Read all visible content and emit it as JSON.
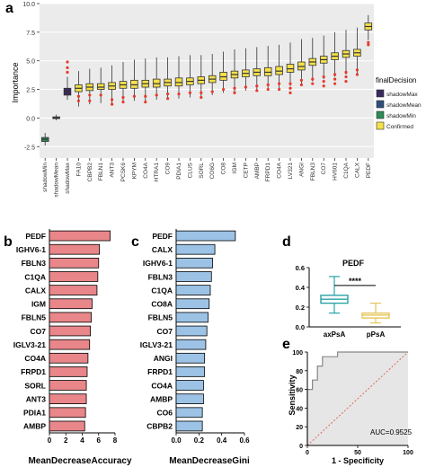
{
  "panel_letters": {
    "a": "a",
    "b": "b",
    "c": "c",
    "d": "d",
    "e": "e"
  },
  "chart_data": [
    {
      "panel": "a",
      "type": "box",
      "ylabel": "Importance",
      "ylim": [
        -3.5,
        10
      ],
      "yticks": [
        -2.5,
        0.0,
        2.5,
        5.0,
        7.5,
        10.0
      ],
      "yticklabels": [
        "-2.5",
        "0.0",
        "2.5",
        "5.0",
        "7.5",
        "10.0"
      ],
      "legend": {
        "title": "finalDecision",
        "placement": "right",
        "entries": [
          {
            "label": "shadowMax",
            "color": "#3b2a5c"
          },
          {
            "label": "shadowMean",
            "color": "#2e4f7a"
          },
          {
            "label": "shadowMin",
            "color": "#2e8b57"
          },
          {
            "label": "Confirmed",
            "color": "#f5e04a"
          }
        ]
      },
      "outlier_color": "#e53b2c",
      "categories": [
        "shadowMin",
        "shadowMean",
        "shadowMax",
        "FA10",
        "CBPB2",
        "FBLN1",
        "ANT3",
        "PCSK6",
        "KPYM",
        "CO4A",
        "HTRA1",
        "CO9",
        "PDIA1",
        "CLUS",
        "SORL",
        "CO6G",
        "CO8",
        "IGM",
        "CETP",
        "AMBP",
        "FRPD1",
        "CO4A",
        "LV321",
        "ANGI",
        "FBLN3",
        "CO7",
        "HV601",
        "C1QA",
        "CALX",
        "PEDF"
      ],
      "series": [
        {
          "name": "shadowMin",
          "values": [
            [
              -2.4,
              -2.05,
              -1.85,
              -1.7,
              -1.3
            ]
          ]
        },
        {
          "name": "shadowMean",
          "values": [
            [
              -0.2,
              -0.05,
              0.0,
              0.1,
              0.3
            ]
          ]
        },
        {
          "name": "shadowMax",
          "values": [
            [
              1.6,
              2.0,
              2.3,
              2.6,
              3.6
            ]
          ]
        },
        {
          "name": "Confirmed",
          "values": [
            [
              1.0,
              2.3,
              2.6,
              2.9,
              4.1
            ],
            [
              1.2,
              2.4,
              2.7,
              3.0,
              4.3
            ],
            [
              1.3,
              2.5,
              2.7,
              3.0,
              4.4
            ],
            [
              1.3,
              2.5,
              2.8,
              3.1,
              4.6
            ],
            [
              1.4,
              2.6,
              2.9,
              3.2,
              4.9
            ],
            [
              1.5,
              2.6,
              2.9,
              3.3,
              5.1
            ],
            [
              1.5,
              2.7,
              3.0,
              3.3,
              5.2
            ],
            [
              1.6,
              2.7,
              3.0,
              3.4,
              5.3
            ],
            [
              1.7,
              2.8,
              3.1,
              3.4,
              5.3
            ],
            [
              1.7,
              2.8,
              3.1,
              3.5,
              5.4
            ],
            [
              1.8,
              2.9,
              3.2,
              3.5,
              5.5
            ],
            [
              1.9,
              3.0,
              3.3,
              3.6,
              5.5
            ],
            [
              2.0,
              3.1,
              3.4,
              3.7,
              5.6
            ],
            [
              2.2,
              3.3,
              3.6,
              4.0,
              5.8
            ],
            [
              2.3,
              3.5,
              3.8,
              4.1,
              6.0
            ],
            [
              2.4,
              3.6,
              3.9,
              4.2,
              6.1
            ],
            [
              2.5,
              3.7,
              4.0,
              4.3,
              6.2
            ],
            [
              2.5,
              3.7,
              4.0,
              4.4,
              6.3
            ],
            [
              2.6,
              3.8,
              4.1,
              4.5,
              6.4
            ],
            [
              2.8,
              4.0,
              4.3,
              4.7,
              6.6
            ],
            [
              3.0,
              4.2,
              4.5,
              4.9,
              6.9
            ],
            [
              3.2,
              4.6,
              4.9,
              5.2,
              7.0
            ],
            [
              3.4,
              4.8,
              5.1,
              5.4,
              7.2
            ],
            [
              3.6,
              5.1,
              5.4,
              5.7,
              7.5
            ],
            [
              3.8,
              5.3,
              5.6,
              5.9,
              7.7
            ],
            [
              3.9,
              5.4,
              5.7,
              6.0,
              7.9
            ],
            [
              6.8,
              7.7,
              8.0,
              8.3,
              9.0
            ]
          ]
        }
      ],
      "outliers": [
        [],
        [],
        [
          4.0,
          4.4,
          4.9
        ],
        [
          1.9,
          1.5
        ],
        [
          2.0,
          1.5
        ],
        [
          2.0
        ],
        [
          1.6,
          1.2
        ],
        [
          1.8,
          1.4
        ],
        [
          1.9
        ],
        [
          1.9,
          1.4
        ],
        [
          2.0
        ],
        [
          2.1,
          1.7
        ],
        [
          2.1
        ],
        [
          2.2
        ],
        [
          2.2,
          1.8
        ],
        [
          2.3
        ],
        [
          2.5
        ],
        [
          2.6,
          2.2
        ],
        [
          2.7
        ],
        [
          2.8,
          2.4
        ],
        [
          2.9,
          2.5
        ],
        [
          3.0,
          2.5
        ],
        [
          3.0,
          2.6,
          2.2
        ],
        [
          3.3,
          2.9
        ],
        [
          3.4,
          3.0
        ],
        [
          3.6,
          3.2,
          2.8
        ],
        [
          3.8,
          3.4,
          3.0
        ],
        [
          4.0,
          3.6,
          3.2
        ],
        [
          4.2,
          3.8
        ],
        [
          6.6,
          6.4
        ]
      ],
      "box_format": "[whisker_low, q1, median, q3, whisker_high]"
    },
    {
      "panel": "b",
      "type": "bar",
      "orientation": "horizontal",
      "color": "#e8868a",
      "categories": [
        "PEDF",
        "IGHV6-1",
        "FBLN3",
        "C1QA",
        "CALX",
        "IGM",
        "FBLN5",
        "CO7",
        "IGLV3-21",
        "CO4A",
        "FRPD1",
        "SORL",
        "ANT3",
        "PDIA1",
        "AMBP"
      ],
      "values": [
        7.4,
        6.1,
        6.0,
        5.9,
        5.8,
        5.2,
        5.1,
        5.0,
        4.9,
        4.7,
        4.6,
        4.5,
        4.5,
        4.4,
        4.3
      ],
      "xlabel": "MeanDecreaseAccuracy",
      "xlim": [
        0,
        8
      ],
      "xticks": [
        0,
        2,
        4,
        6,
        8
      ]
    },
    {
      "panel": "c",
      "type": "bar",
      "orientation": "horizontal",
      "color": "#9cc3e6",
      "categories": [
        "PEDF",
        "CALX",
        "IGHV6-1",
        "FBLN3",
        "C1QA",
        "CO8A",
        "FBLN5",
        "CO7",
        "IGLV3-21",
        "ANGI",
        "FRPD1",
        "CO4A",
        "AMBP",
        "CO6",
        "CBPB2"
      ],
      "values": [
        0.52,
        0.34,
        0.32,
        0.31,
        0.3,
        0.29,
        0.28,
        0.27,
        0.26,
        0.25,
        0.25,
        0.24,
        0.24,
        0.23,
        0.23
      ],
      "xlabel": "MeanDecreaseGini",
      "xlim": [
        0,
        0.6
      ],
      "xticks": [
        0.0,
        0.2,
        0.4,
        0.6
      ],
      "xticklabels": [
        "0.0",
        "0.2",
        "0.4",
        "0.6"
      ]
    },
    {
      "panel": "d",
      "type": "box",
      "title": "PEDF",
      "ylim": [
        0,
        0.6
      ],
      "yticks": [
        0.0,
        0.2,
        0.4,
        0.6
      ],
      "yticklabels": [
        "0.0",
        "0.2",
        "0.4",
        "0.6"
      ],
      "categories": [
        "axPsA",
        "pPsA"
      ],
      "series": [
        {
          "name": "axPsA",
          "color": "#2aa3a3",
          "values": [
            0.14,
            0.24,
            0.28,
            0.32,
            0.51
          ]
        },
        {
          "name": "pPsA",
          "color": "#e6c55a",
          "values": [
            0.04,
            0.09,
            0.12,
            0.14,
            0.24
          ]
        }
      ],
      "box_format": "[whisker_low, q1, median, q3, whisker_high]",
      "significance": "****"
    },
    {
      "panel": "e",
      "type": "line",
      "xlabel": "1 - Specificity",
      "ylabel": "Sensitivity",
      "xlim": [
        0,
        100
      ],
      "ylim": [
        0,
        100
      ],
      "xticks": [
        0,
        50,
        100
      ],
      "yticks": [
        0,
        20,
        40,
        60,
        80,
        100
      ],
      "series": [
        {
          "name": "ROC",
          "color": "#888888",
          "x": [
            0,
            0,
            5,
            5,
            10,
            10,
            15,
            15,
            30,
            30,
            100
          ],
          "y": [
            0,
            60,
            60,
            70,
            70,
            85,
            85,
            95,
            95,
            100,
            100
          ]
        },
        {
          "name": "reference",
          "color": "#e05a4a",
          "dashed": true,
          "x": [
            0,
            100
          ],
          "y": [
            0,
            100
          ]
        }
      ],
      "fill_color": "#e6e6e6",
      "annotation": "AUC=0.9525"
    }
  ]
}
